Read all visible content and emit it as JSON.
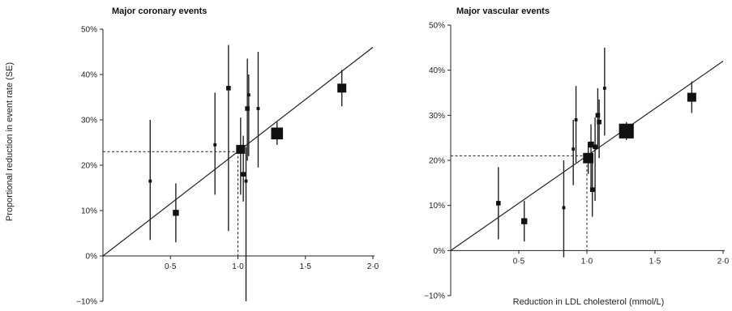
{
  "figure": {
    "ylabel": "Proportional reduction in event rate (SE)",
    "xlabel": "Reduction in LDL cholesterol (mmol/L)"
  },
  "chart_data": [
    {
      "type": "scatter",
      "title": "Major coronary events",
      "xlabel": "",
      "ylabel": "Proportional reduction in event rate (SE)",
      "xlim": [
        0,
        2.0
      ],
      "ylim": [
        -10,
        50
      ],
      "x_ticks": [
        "0·5",
        "1·0",
        "1·5",
        "2·0"
      ],
      "y_ticks": [
        "50%",
        "40%",
        "30%",
        "20%",
        "10%",
        "0%",
        "−10%"
      ],
      "grid": false,
      "regression_line": {
        "x": [
          0,
          2.0
        ],
        "y": [
          0,
          46
        ]
      },
      "reference": {
        "x": 1.0,
        "y": 23
      },
      "points": [
        {
          "x": 0.35,
          "y": 16.5,
          "lo": 3.5,
          "hi": 30,
          "weight": 1
        },
        {
          "x": 0.54,
          "y": 9.5,
          "lo": 3,
          "hi": 16,
          "weight": 3
        },
        {
          "x": 0.83,
          "y": 24.5,
          "lo": 13.5,
          "hi": 36,
          "weight": 1
        },
        {
          "x": 0.93,
          "y": 37,
          "lo": 5.5,
          "hi": 46.5,
          "weight": 2
        },
        {
          "x": 1.02,
          "y": 23.5,
          "lo": 13.5,
          "hi": 30.5,
          "weight": 5
        },
        {
          "x": 1.04,
          "y": 18,
          "lo": 12,
          "hi": 26.5,
          "weight": 2
        },
        {
          "x": 1.07,
          "y": 32.5,
          "lo": 21,
          "hi": 43.5,
          "weight": 2
        },
        {
          "x": 1.08,
          "y": 35.5,
          "lo": 22,
          "hi": 40,
          "weight": 1
        },
        {
          "x": 1.06,
          "y": 16.5,
          "lo": -10,
          "hi": 24,
          "weight": 1
        },
        {
          "x": 1.15,
          "y": 32.5,
          "lo": 19.5,
          "hi": 45,
          "weight": 1
        },
        {
          "x": 1.29,
          "y": 27,
          "lo": 24.5,
          "hi": 29.5,
          "weight": 7
        },
        {
          "x": 1.77,
          "y": 37,
          "lo": 33,
          "hi": 41,
          "weight": 5
        }
      ]
    },
    {
      "type": "scatter",
      "title": "Major vascular events",
      "xlabel": "Reduction in LDL cholesterol (mmol/L)",
      "ylabel": "",
      "xlim": [
        0,
        2.0
      ],
      "ylim": [
        -10,
        50
      ],
      "x_ticks": [
        "0·5",
        "1·0",
        "1·5",
        "2·0"
      ],
      "y_ticks": [
        "50%",
        "40%",
        "30%",
        "20%",
        "10%",
        "0%",
        "−10%"
      ],
      "grid": false,
      "regression_line": {
        "x": [
          0,
          2.0
        ],
        "y": [
          0,
          42
        ]
      },
      "reference": {
        "x": 1.0,
        "y": 21
      },
      "points": [
        {
          "x": 0.35,
          "y": 10.5,
          "lo": 2.5,
          "hi": 18.5,
          "weight": 2
        },
        {
          "x": 0.54,
          "y": 6.5,
          "lo": 2,
          "hi": 11,
          "weight": 3
        },
        {
          "x": 0.83,
          "y": 9.5,
          "lo": -1.5,
          "hi": 20,
          "weight": 1
        },
        {
          "x": 0.9,
          "y": 22.5,
          "lo": 14.5,
          "hi": 29,
          "weight": 1
        },
        {
          "x": 0.92,
          "y": 29,
          "lo": 19.5,
          "hi": 36.5,
          "weight": 1
        },
        {
          "x": 1.01,
          "y": 20.5,
          "lo": 17,
          "hi": 24,
          "weight": 6
        },
        {
          "x": 1.03,
          "y": 23.5,
          "lo": 13.5,
          "hi": 28,
          "weight": 3
        },
        {
          "x": 1.04,
          "y": 13.5,
          "lo": 7.5,
          "hi": 20,
          "weight": 2
        },
        {
          "x": 1.06,
          "y": 23,
          "lo": 11,
          "hi": 29.5,
          "weight": 2
        },
        {
          "x": 1.08,
          "y": 30,
          "lo": 22.5,
          "hi": 36,
          "weight": 2
        },
        {
          "x": 1.09,
          "y": 28.5,
          "lo": 20.5,
          "hi": 33.5,
          "weight": 2
        },
        {
          "x": 1.13,
          "y": 36,
          "lo": 25.5,
          "hi": 45,
          "weight": 1
        },
        {
          "x": 1.29,
          "y": 26.5,
          "lo": 24.5,
          "hi": 28.5,
          "weight": 9
        },
        {
          "x": 1.77,
          "y": 34,
          "lo": 30.5,
          "hi": 37.5,
          "weight": 5
        }
      ]
    }
  ]
}
